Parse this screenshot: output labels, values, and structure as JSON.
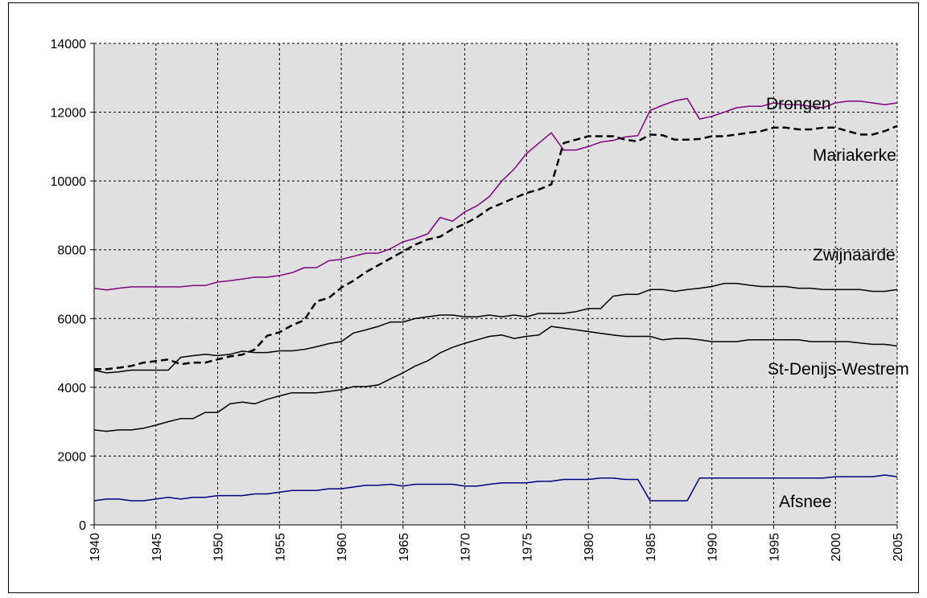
{
  "chart_data": {
    "type": "line",
    "x": [
      1940,
      1941,
      1942,
      1943,
      1944,
      1945,
      1946,
      1947,
      1948,
      1949,
      1950,
      1951,
      1952,
      1953,
      1954,
      1955,
      1956,
      1957,
      1958,
      1959,
      1960,
      1961,
      1962,
      1963,
      1964,
      1965,
      1966,
      1967,
      1968,
      1969,
      1970,
      1971,
      1972,
      1973,
      1974,
      1975,
      1976,
      1977,
      1978,
      1979,
      1980,
      1981,
      1982,
      1983,
      1984,
      1985,
      1986,
      1987,
      1988,
      1989,
      1990,
      1991,
      1992,
      1993,
      1994,
      1995,
      1996,
      1997,
      1998,
      1999,
      2000,
      2001,
      2002,
      2003,
      2004,
      2005
    ],
    "xlim": [
      1940,
      2005
    ],
    "xticks": [
      1940,
      1945,
      1950,
      1955,
      1960,
      1965,
      1970,
      1975,
      1980,
      1985,
      1990,
      1995,
      2000,
      2005
    ],
    "ylim": [
      0,
      14000
    ],
    "yticks": [
      0,
      2000,
      4000,
      6000,
      8000,
      10000,
      12000,
      14000
    ],
    "grid": true,
    "series": [
      {
        "name": "Drongen",
        "color": "#800080",
        "dashed": false,
        "values": [
          6880,
          6830,
          6880,
          6920,
          6920,
          6920,
          6920,
          6920,
          6960,
          6960,
          7060,
          7100,
          7150,
          7200,
          7200,
          7250,
          7330,
          7480,
          7480,
          7680,
          7720,
          7810,
          7900,
          7900,
          8030,
          8230,
          8330,
          8460,
          8940,
          8830,
          9100,
          9280,
          9550,
          10000,
          10350,
          10800,
          11100,
          11400,
          10900,
          10900,
          11000,
          11130,
          11180,
          11280,
          11320,
          12050,
          12200,
          12330,
          12400,
          11800,
          11880,
          12000,
          12130,
          12170,
          12170,
          12270,
          12220,
          12220,
          12170,
          12130,
          12270,
          12320,
          12320,
          12270,
          12220,
          12270
        ]
      },
      {
        "name": "Mariakerke",
        "color": "#000000",
        "dashed": true,
        "values": [
          4530,
          4530,
          4570,
          4620,
          4720,
          4760,
          4810,
          4670,
          4720,
          4720,
          4810,
          4900,
          4950,
          5100,
          5500,
          5600,
          5800,
          5950,
          6500,
          6600,
          6900,
          7100,
          7350,
          7550,
          7750,
          7950,
          8150,
          8300,
          8380,
          8600,
          8750,
          8950,
          9200,
          9350,
          9500,
          9650,
          9750,
          9900,
          11100,
          11200,
          11300,
          11300,
          11300,
          11200,
          11150,
          11350,
          11330,
          11200,
          11200,
          11220,
          11300,
          11300,
          11350,
          11400,
          11450,
          11550,
          11550,
          11500,
          11500,
          11550,
          11550,
          11450,
          11350,
          11350,
          11450,
          11600
        ]
      },
      {
        "name": "Zwijnaarde",
        "color": "#000000",
        "dashed": false,
        "values": [
          4500,
          4420,
          4450,
          4500,
          4500,
          4500,
          4500,
          4870,
          4920,
          4960,
          4920,
          4960,
          5050,
          5010,
          5010,
          5060,
          5060,
          5100,
          5180,
          5270,
          5330,
          5580,
          5670,
          5770,
          5900,
          5900,
          6000,
          6050,
          6100,
          6100,
          6050,
          6050,
          6100,
          6050,
          6100,
          6050,
          6150,
          6150,
          6150,
          6200,
          6290,
          6290,
          6650,
          6700,
          6700,
          6840,
          6840,
          6790,
          6840,
          6880,
          6930,
          7020,
          7020,
          6970,
          6930,
          6930,
          6930,
          6880,
          6880,
          6840,
          6840,
          6840,
          6840,
          6790,
          6790,
          6840
        ]
      },
      {
        "name": "St-Denijs-Westrem",
        "color": "#000000",
        "dashed": false,
        "values": [
          2760,
          2720,
          2760,
          2760,
          2810,
          2900,
          3000,
          3090,
          3090,
          3270,
          3270,
          3520,
          3570,
          3520,
          3650,
          3750,
          3840,
          3840,
          3840,
          3880,
          3930,
          4020,
          4020,
          4070,
          4250,
          4420,
          4620,
          4770,
          5000,
          5160,
          5280,
          5380,
          5480,
          5520,
          5420,
          5480,
          5520,
          5770,
          5720,
          5670,
          5620,
          5570,
          5520,
          5480,
          5480,
          5480,
          5380,
          5420,
          5420,
          5380,
          5330,
          5330,
          5330,
          5380,
          5380,
          5380,
          5380,
          5380,
          5330,
          5330,
          5330,
          5330,
          5290,
          5250,
          5250,
          5200
        ]
      },
      {
        "name": "Afsnee",
        "color": "#000080",
        "dashed": false,
        "values": [
          700,
          750,
          750,
          700,
          700,
          750,
          800,
          750,
          800,
          800,
          850,
          850,
          850,
          900,
          900,
          950,
          1000,
          1000,
          1000,
          1050,
          1050,
          1100,
          1150,
          1150,
          1180,
          1130,
          1180,
          1180,
          1180,
          1180,
          1130,
          1130,
          1180,
          1220,
          1220,
          1220,
          1270,
          1270,
          1320,
          1320,
          1320,
          1360,
          1360,
          1320,
          1320,
          700,
          700,
          700,
          700,
          1360,
          1360,
          1360,
          1360,
          1360,
          1360,
          1360,
          1360,
          1360,
          1360,
          1360,
          1400,
          1400,
          1400,
          1400,
          1450,
          1400
        ]
      }
    ]
  }
}
